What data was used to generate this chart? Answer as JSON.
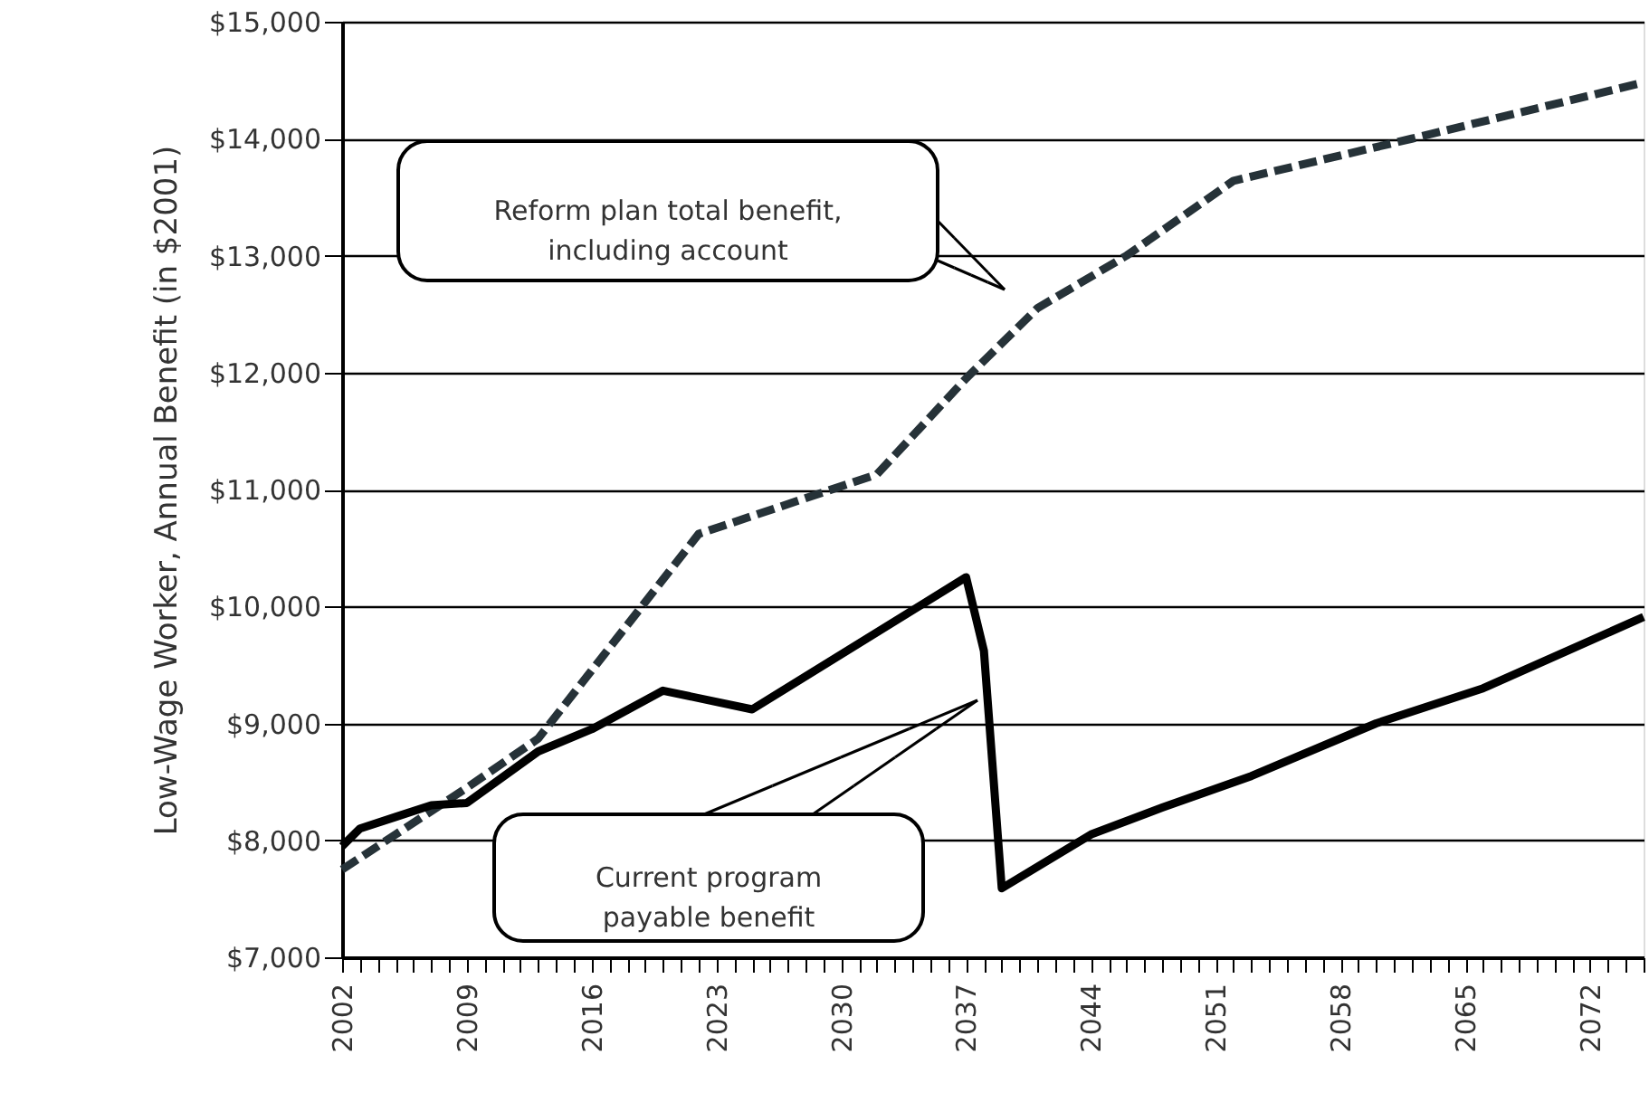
{
  "chart_data": {
    "type": "line",
    "ylabel": "Low-Wage Worker, Annual Benefit (in $2001)",
    "annotations": [
      "Reform plan total benefit,\nincluding account",
      "Current program\npayable benefit"
    ],
    "series": [
      {
        "color": "#263238",
        "line_style": "dashed",
        "x": [
          2002,
          2005,
          2009,
          2013,
          2022,
          2032,
          2037,
          2041,
          2046,
          2052,
          2062,
          2075
        ],
        "values": [
          7750,
          8050,
          8450,
          8870,
          10620,
          11130,
          11950,
          12550,
          13000,
          13640,
          14000,
          14480
        ]
      },
      {
        "color": "#000000",
        "line_style": "solid",
        "x": [
          2002,
          2003,
          2005,
          2007,
          2009,
          2013,
          2016,
          2020,
          2025,
          2037,
          2038,
          2039,
          2044,
          2048,
          2053,
          2060,
          2066,
          2075
        ],
        "values": [
          7950,
          8100,
          8200,
          8300,
          8320,
          8760,
          8950,
          9280,
          9120,
          10250,
          9620,
          7590,
          8050,
          8280,
          8550,
          9000,
          9300,
          9910
        ]
      }
    ],
    "xlim": [
      2002,
      2075
    ],
    "xticks": [
      2002,
      {
        "value": 2003,
        "label": null
      },
      {
        "value": 2004,
        "label": null
      },
      {
        "value": 2005,
        "label": null
      },
      {
        "value": 2006,
        "label": null
      },
      {
        "value": 2007,
        "label": null
      },
      {
        "value": 2008,
        "label": null
      },
      2009,
      {
        "value": 2010,
        "label": null
      },
      {
        "value": 2011,
        "label": null
      },
      {
        "value": 2012,
        "label": null
      },
      {
        "value": 2013,
        "label": null
      },
      {
        "value": 2014,
        "label": null
      },
      {
        "value": 2015,
        "label": null
      },
      2016,
      {
        "value": 2017,
        "label": null
      },
      {
        "value": 2018,
        "label": null
      },
      {
        "value": 2019,
        "label": null
      },
      {
        "value": 2020,
        "label": null
      },
      {
        "value": 2021,
        "label": null
      },
      {
        "value": 2022,
        "label": null
      },
      2023,
      {
        "value": 2024,
        "label": null
      },
      {
        "value": 2025,
        "label": null
      },
      {
        "value": 2026,
        "label": null
      },
      {
        "value": 2027,
        "label": null
      },
      {
        "value": 2028,
        "label": null
      },
      {
        "value": 2029,
        "label": null
      },
      2030,
      {
        "value": 2031,
        "label": null
      },
      {
        "value": 2032,
        "label": null
      },
      {
        "value": 2033,
        "label": null
      },
      {
        "value": 2034,
        "label": null
      },
      {
        "value": 2035,
        "label": null
      },
      {
        "value": 2036,
        "label": null
      },
      2037,
      {
        "value": 2038,
        "label": null
      },
      {
        "value": 2039,
        "label": null
      },
      {
        "value": 2040,
        "label": null
      },
      {
        "value": 2041,
        "label": null
      },
      {
        "value": 2042,
        "label": null
      },
      {
        "value": 2043,
        "label": null
      },
      2044,
      {
        "value": 2045,
        "label": null
      },
      {
        "value": 2046,
        "label": null
      },
      {
        "value": 2047,
        "label": null
      },
      {
        "value": 2048,
        "label": null
      },
      {
        "value": 2049,
        "label": null
      },
      {
        "value": 2050,
        "label": null
      },
      2051,
      {
        "value": 2052,
        "label": null
      },
      {
        "value": 2053,
        "label": null
      },
      {
        "value": 2054,
        "label": null
      },
      {
        "value": 2055,
        "label": null
      },
      {
        "value": 2056,
        "label": null
      },
      {
        "value": 2057,
        "label": null
      },
      2058,
      {
        "value": 2059,
        "label": null
      },
      {
        "value": 2060,
        "label": null
      },
      {
        "value": 2061,
        "label": null
      },
      {
        "value": 2062,
        "label": null
      },
      {
        "value": 2063,
        "label": null
      },
      {
        "value": 2064,
        "label": null
      },
      2065,
      {
        "value": 2066,
        "label": null
      },
      {
        "value": 2067,
        "label": null
      },
      {
        "value": 2068,
        "label": null
      },
      {
        "value": 2069,
        "label": null
      },
      {
        "value": 2070,
        "label": null
      },
      {
        "value": 2071,
        "label": null
      },
      2072,
      {
        "value": 2073,
        "label": null
      },
      {
        "value": 2074,
        "label": null
      },
      {
        "value": 2075,
        "label": null
      }
    ],
    "ylim": [
      7000,
      15000
    ],
    "yticks": [
      {
        "value": 7000,
        "label": "$7,000"
      },
      {
        "value": 8000,
        "label": "$8,000"
      },
      {
        "value": 9000,
        "label": "$9,000"
      },
      {
        "value": 10000,
        "label": "$10,000"
      },
      {
        "value": 11000,
        "label": "$11,000"
      },
      {
        "value": 12000,
        "label": "$12,000"
      },
      {
        "value": 13000,
        "label": "$13,000"
      },
      {
        "value": 14000,
        "label": "$14,000"
      },
      {
        "value": 15000,
        "label": "$15,000"
      }
    ],
    "grid": "y"
  }
}
